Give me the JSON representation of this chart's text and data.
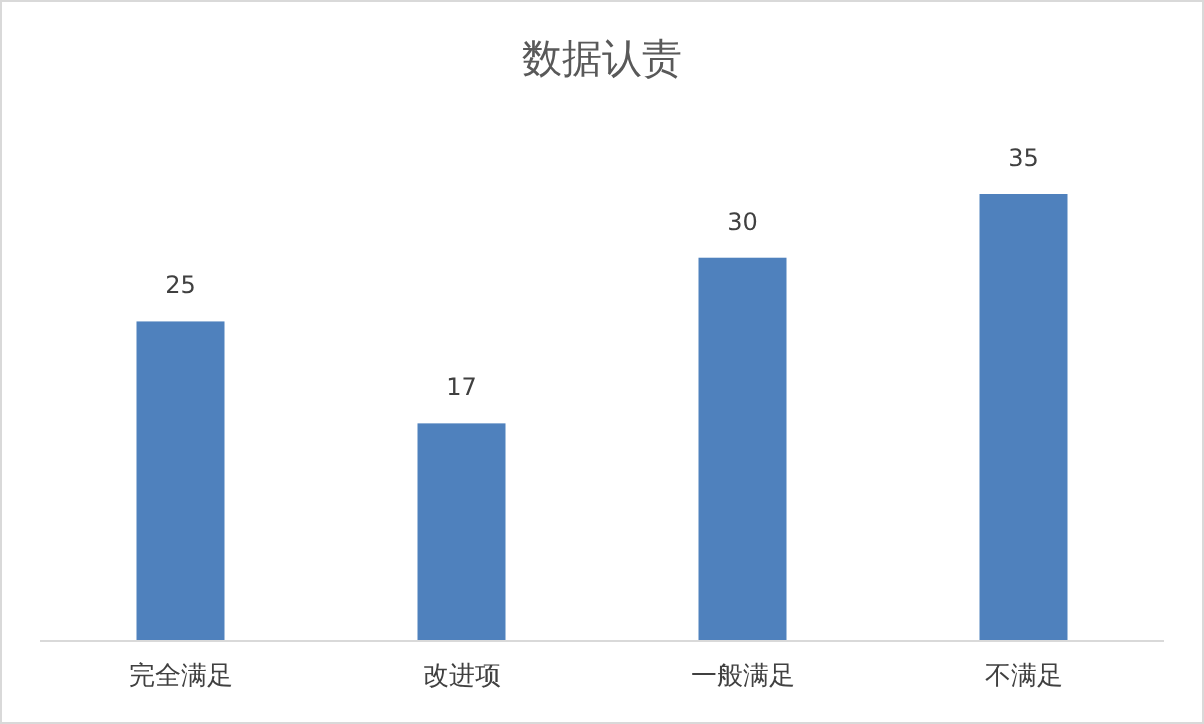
{
  "chart_data": {
    "type": "bar",
    "title": "数据认责",
    "categories": [
      "完全满足",
      "改进项",
      "一般满足",
      "不满足"
    ],
    "values": [
      25,
      17,
      30,
      35
    ],
    "color": "#4f81bd",
    "data_labels": true
  }
}
